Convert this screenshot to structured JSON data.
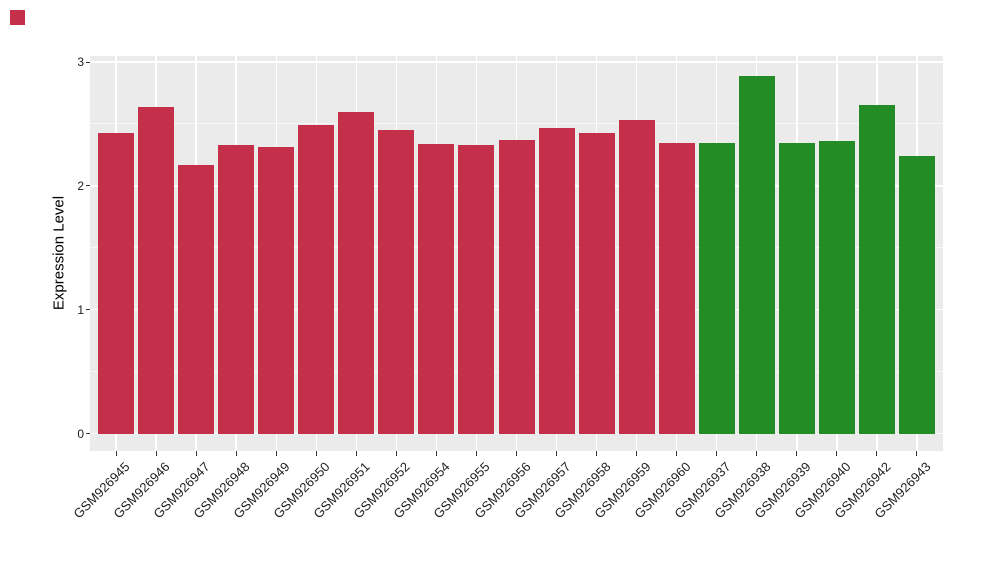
{
  "figure": {
    "background": "#ffffff",
    "corner_marker_color": "#C43049"
  },
  "chart_data": {
    "type": "bar",
    "title": "",
    "xlabel": "",
    "ylabel": "Expression Level",
    "ylim": [
      0,
      3
    ],
    "yticks_major": [
      0,
      1,
      2,
      3
    ],
    "yticks_minor": [
      0.5,
      1.5,
      2.5
    ],
    "grid": "white major and minor horizontal gridlines plus one white vertical gridline per category on a light grey panel",
    "legend_position": "none",
    "panel_background": "#EBEBEB",
    "bar_width_fraction": 0.9,
    "group_colors": {
      "red": "#C43049",
      "green": "#248C24"
    },
    "categories": [
      "GSM926945",
      "GSM926946",
      "GSM926947",
      "GSM926948",
      "GSM926949",
      "GSM926950",
      "GSM926951",
      "GSM926952",
      "GSM926954",
      "GSM926955",
      "GSM926956",
      "GSM926957",
      "GSM926958",
      "GSM926959",
      "GSM926960",
      "GSM926937",
      "GSM926938",
      "GSM926939",
      "GSM926940",
      "GSM926942",
      "GSM926943"
    ],
    "values": [
      2.43,
      2.64,
      2.17,
      2.33,
      2.31,
      2.49,
      2.6,
      2.45,
      2.34,
      2.33,
      2.37,
      2.47,
      2.43,
      2.53,
      2.35,
      2.35,
      2.89,
      2.35,
      2.36,
      2.65,
      2.24
    ],
    "groups": [
      "red",
      "red",
      "red",
      "red",
      "red",
      "red",
      "red",
      "red",
      "red",
      "red",
      "red",
      "red",
      "red",
      "red",
      "red",
      "green",
      "green",
      "green",
      "green",
      "green",
      "green"
    ]
  }
}
